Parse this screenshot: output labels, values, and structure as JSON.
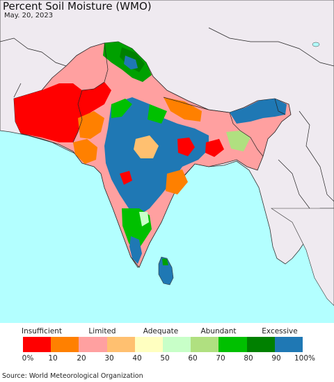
{
  "map": {
    "title": "Percent Soil Moisture (WMO)",
    "date": "May. 20, 2023",
    "land_color": "#efeaf0",
    "sea_color": "#b3ffff",
    "border_color": "#222222"
  },
  "legend": {
    "categories": [
      "Insufficient",
      "Limited",
      "Adequate",
      "Abundant",
      "Excessive"
    ],
    "colors": [
      "#ff0000",
      "#ff8000",
      "#ffa0a0",
      "#ffc070",
      "#ffffc0",
      "#c8ffc8",
      "#b0e080",
      "#00c000",
      "#008000",
      "#1f78b4"
    ],
    "ticks": [
      "0%",
      "10",
      "20",
      "30",
      "40",
      "50",
      "60",
      "70",
      "80",
      "90",
      "100%"
    ]
  },
  "source": "Source: World Meteorological Organization"
}
